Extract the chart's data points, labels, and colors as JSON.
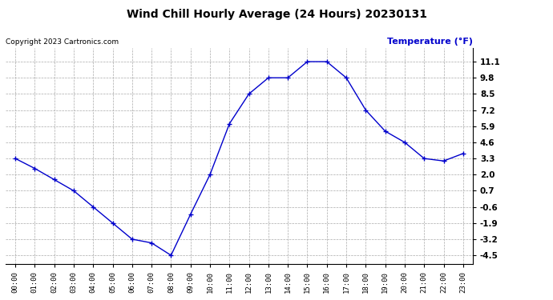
{
  "title": "Wind Chill Hourly Average (24 Hours) 20230131",
  "ylabel": "Temperature (°F)",
  "copyright": "Copyright 2023 Cartronics.com",
  "hours": [
    "00:00",
    "01:00",
    "02:00",
    "03:00",
    "04:00",
    "05:00",
    "06:00",
    "07:00",
    "08:00",
    "09:00",
    "10:00",
    "11:00",
    "12:00",
    "13:00",
    "14:00",
    "15:00",
    "16:00",
    "17:00",
    "18:00",
    "19:00",
    "20:00",
    "21:00",
    "22:00",
    "23:00"
  ],
  "values": [
    3.3,
    2.5,
    1.6,
    0.7,
    -0.6,
    -1.9,
    -3.2,
    -3.5,
    -4.5,
    -1.2,
    2.0,
    6.1,
    8.5,
    9.8,
    9.8,
    11.1,
    11.1,
    9.8,
    7.2,
    5.5,
    4.6,
    3.3,
    3.1,
    3.7
  ],
  "line_color": "#0000cc",
  "marker": "+",
  "yticks": [
    11.1,
    9.8,
    8.5,
    7.2,
    5.9,
    4.6,
    3.3,
    2.0,
    0.7,
    -0.6,
    -1.9,
    -3.2,
    -4.5
  ],
  "ylim": [
    -5.2,
    12.2
  ],
  "bg_color": "#ffffff",
  "grid_color": "#aaaaaa",
  "title_color": "#000000",
  "ylabel_color": "#0000cc",
  "copyright_color": "#000000"
}
